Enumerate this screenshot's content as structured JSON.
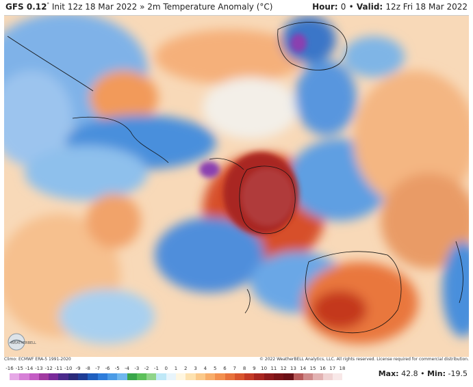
{
  "header": {
    "model": "GFS 0.12",
    "model_deg": "°",
    "init": "Init 12z 18 Mar 2022",
    "separator": "»",
    "variable": "2m Temperature Anomaly (°C)",
    "hour_label": "Hour:",
    "hour_value": "0",
    "valid_sep": "•",
    "valid_label": "Valid:",
    "valid_value": "12z Fri 18 Mar 2022"
  },
  "footer": {
    "climo": "Climo: ECMWF ERA-5 1991-2020",
    "copyright": "© 2022 WeatherBELL Analytics, LLC. All rights reserved. License required for commercial distribution.",
    "max_label": "Max:",
    "max_value": "42.8",
    "min_sep": "•",
    "min_label": "Min:",
    "min_value": "-19.5",
    "logo_text": "WEATHERBELL"
  },
  "colorbar": {
    "labels": [
      "-16",
      "-15",
      "-14",
      "-13",
      "-12",
      "-11",
      "-10",
      "-9",
      "-8",
      "-7",
      "-6",
      "-5",
      "-4",
      "-3",
      "-2",
      "-1",
      "0",
      "1",
      "2",
      "3",
      "4",
      "5",
      "6",
      "7",
      "8",
      "9",
      "10",
      "11",
      "12",
      "13",
      "14",
      "15",
      "16",
      "17",
      "18"
    ],
    "colors": [
      "#e6a8e6",
      "#d67fd6",
      "#c45cc4",
      "#a13aa1",
      "#7a2a9a",
      "#4b2a8c",
      "#2a2a7a",
      "#1e3c96",
      "#1f5fbf",
      "#2e7ddb",
      "#4a9be6",
      "#6fb7ee",
      "#39a64a",
      "#5cc05a",
      "#8fd48a",
      "#bfe8f7",
      "#e8f4fb",
      "#fff6e0",
      "#fde2b0",
      "#fbc98a",
      "#f8ad6a",
      "#f3904f",
      "#e8723c",
      "#d9552e",
      "#c43a26",
      "#a92620",
      "#8e1a1c",
      "#7a1418",
      "#6a1016",
      "#b85a5a",
      "#cf8a8a",
      "#e2b2b2",
      "#f0d4d4",
      "#f8e8e8"
    ]
  }
}
